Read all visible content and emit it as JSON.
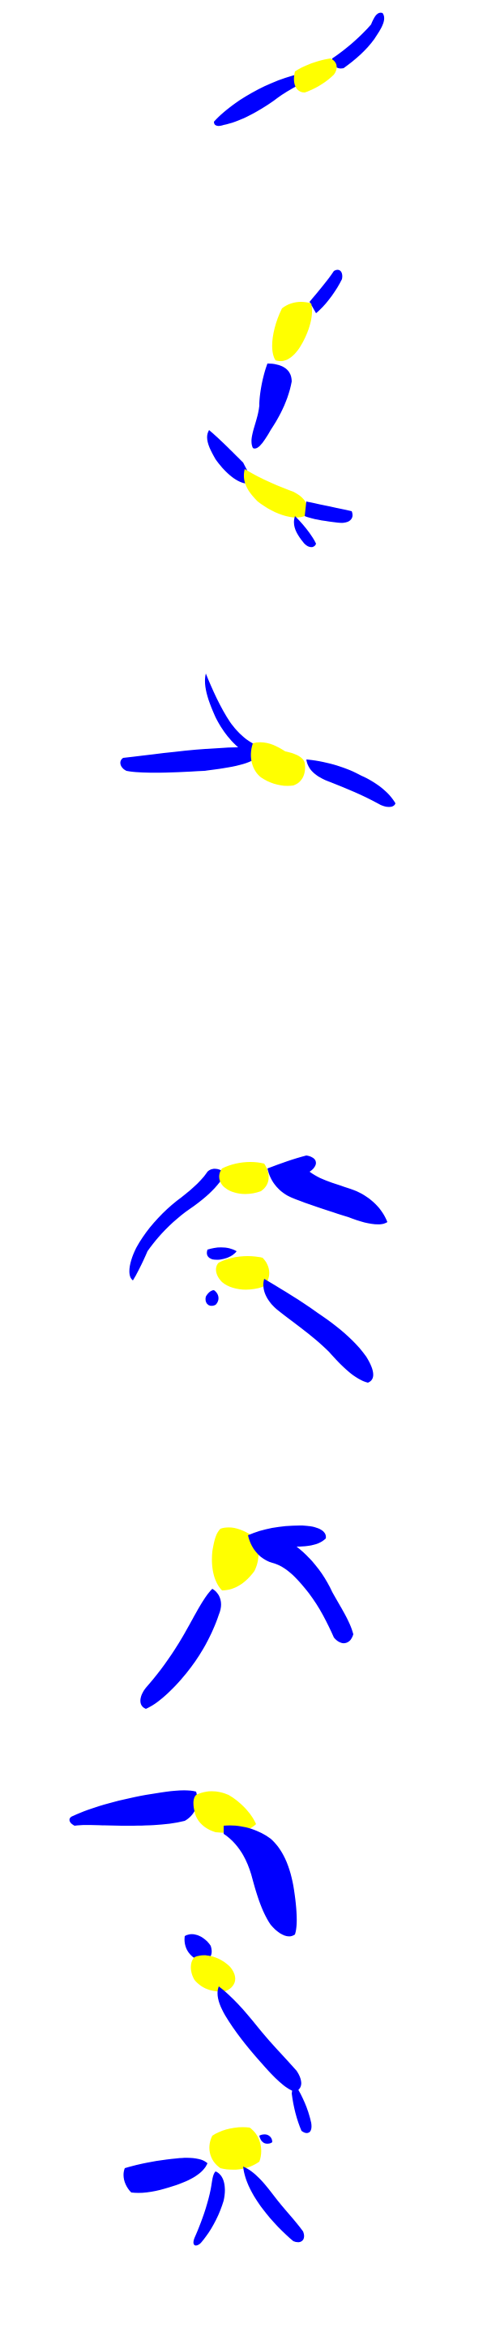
{
  "colors": {
    "background": "#ffffff",
    "segment": "#0000ff",
    "highlight": "#ffff00"
  },
  "figures": [
    {
      "name": "figure-1",
      "shape": "diagonal-band"
    },
    {
      "name": "figure-2",
      "shape": "bent-pair"
    },
    {
      "name": "figure-3",
      "shape": "three-arm-junction"
    },
    {
      "name": "figure-4",
      "shape": "stacked-chevrons"
    },
    {
      "name": "figure-5",
      "shape": "inverted-v"
    },
    {
      "name": "figure-6",
      "shape": "arc"
    },
    {
      "name": "figure-7",
      "shape": "diagonal-descent"
    },
    {
      "name": "figure-8",
      "shape": "tripod"
    }
  ]
}
